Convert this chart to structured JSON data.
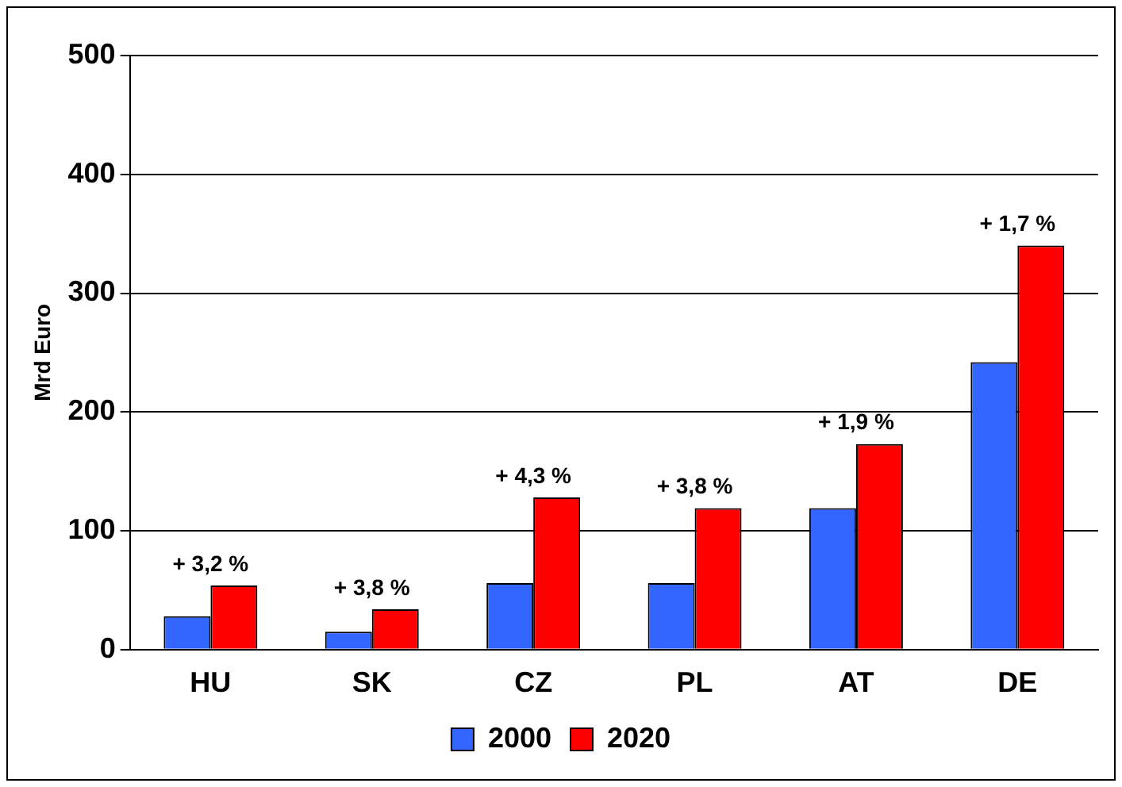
{
  "chart_data": {
    "type": "bar",
    "ylabel": "Mrd Euro",
    "categories": [
      "HU",
      "SK",
      "CZ",
      "PL",
      "AT",
      "DE"
    ],
    "series": [
      {
        "name": "2000",
        "color": "#3366ff",
        "values": [
          28,
          15,
          56,
          56,
          119,
          242
        ]
      },
      {
        "name": "2020",
        "color": "#ff0000",
        "values": [
          54,
          34,
          128,
          119,
          173,
          340
        ]
      }
    ],
    "ylim": [
      0,
      500
    ],
    "yticks": [
      0,
      100,
      200,
      300,
      400,
      500
    ],
    "grid": "y",
    "legend": "bottom",
    "annotations": [
      {
        "text": "+ 3,2 %",
        "x": "HU",
        "y": 54
      },
      {
        "text": "+ 3,8 %",
        "x": "SK",
        "y": 34
      },
      {
        "text": "+ 4,3 %",
        "x": "CZ",
        "y": 128
      },
      {
        "text": "+ 3,8 %",
        "x": "PL",
        "y": 119
      },
      {
        "text": "+ 1,9 %",
        "x": "AT",
        "y": 173
      },
      {
        "text": "+ 1,7 %",
        "x": "DE",
        "y": 340
      }
    ]
  }
}
